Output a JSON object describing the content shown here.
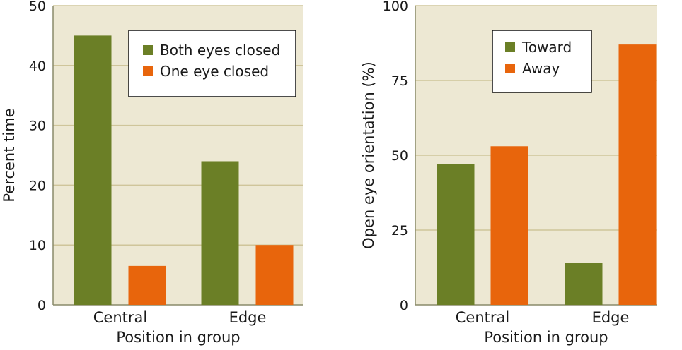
{
  "colors": {
    "panel_bg": "#ede8d3",
    "gridline": "#cfc59a",
    "axis": "#8a8a6a",
    "green": "#6b7f26",
    "orange": "#e8650c",
    "legend_bg": "#ffffff"
  },
  "chart_data": [
    {
      "type": "bar",
      "title": "",
      "xlabel": "Position in group",
      "ylabel": "Percent time",
      "ylim": [
        0,
        50
      ],
      "yticks": [
        "0",
        "10",
        "20",
        "30",
        "40",
        "50"
      ],
      "categories": [
        "Central",
        "Edge"
      ],
      "series": [
        {
          "name": "Both eyes closed",
          "color": "#6b7f26",
          "values": [
            45,
            24
          ]
        },
        {
          "name": "One eye closed",
          "color": "#e8650c",
          "values": [
            6.5,
            10
          ]
        }
      ],
      "grid": true,
      "legend_position": "top-right"
    },
    {
      "type": "bar",
      "title": "",
      "xlabel": "Position in group",
      "ylabel": "Open eye orientation (%)",
      "ylim": [
        0,
        100
      ],
      "yticks": [
        "0",
        "25",
        "50",
        "75",
        "100"
      ],
      "categories": [
        "Central",
        "Edge"
      ],
      "series": [
        {
          "name": "Toward",
          "color": "#6b7f26",
          "values": [
            47,
            14
          ]
        },
        {
          "name": "Away",
          "color": "#e8650c",
          "values": [
            53,
            87
          ]
        }
      ],
      "grid": true,
      "legend_position": "top-center"
    }
  ]
}
